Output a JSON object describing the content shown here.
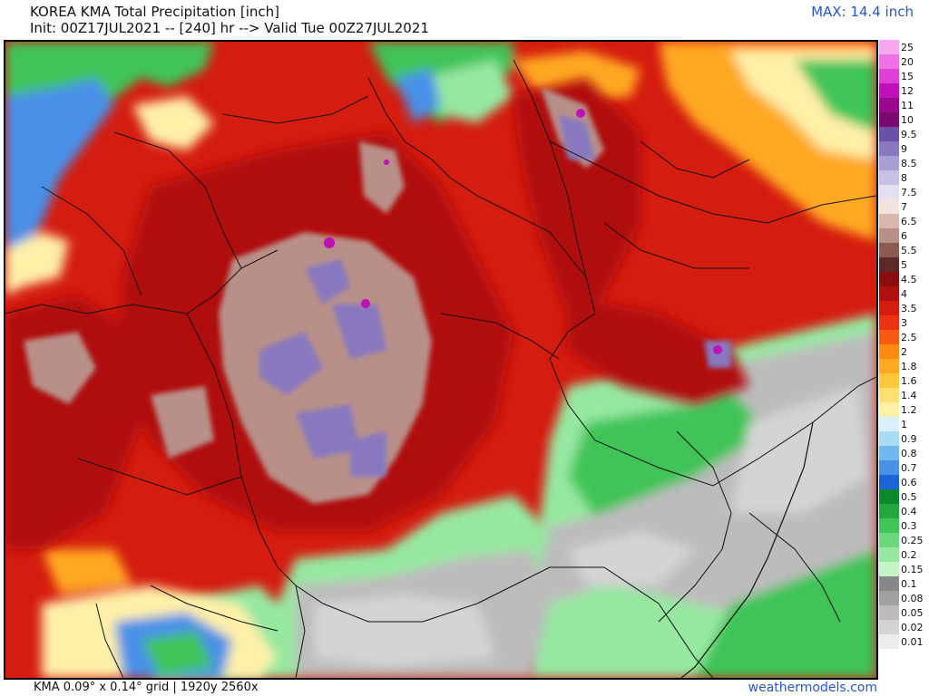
{
  "header": {
    "title": "KOREA KMA Total Precipitation [inch]",
    "init": "Init: 00Z17JUL2021 -- [240] hr --> Valid Tue 00Z27JUL2021",
    "max": "MAX: 14.4 inch"
  },
  "footer": {
    "grid_info": "KMA 0.09° x 0.14° grid | 1920y 2560x",
    "site": "weathermodels.com"
  },
  "legend": [
    {
      "label": "25",
      "color": "#f7a8f0"
    },
    {
      "label": "20",
      "color": "#f070e8"
    },
    {
      "label": "15",
      "color": "#e040d8"
    },
    {
      "label": "12",
      "color": "#c010b8"
    },
    {
      "label": "11",
      "color": "#9a0890"
    },
    {
      "label": "10",
      "color": "#7a0a70"
    },
    {
      "label": "9.5",
      "color": "#6a50a8"
    },
    {
      "label": "9",
      "color": "#8878c0"
    },
    {
      "label": "8.5",
      "color": "#a8a0d4"
    },
    {
      "label": "8",
      "color": "#c8c0e4"
    },
    {
      "label": "7.5",
      "color": "#e4e0f0"
    },
    {
      "label": "7",
      "color": "#f2e4dc"
    },
    {
      "label": "6.5",
      "color": "#d8b8ac"
    },
    {
      "label": "6",
      "color": "#b89088"
    },
    {
      "label": "5.5",
      "color": "#8c5a52"
    },
    {
      "label": "5",
      "color": "#5c2a28"
    },
    {
      "label": "4.5",
      "color": "#8a0e0e"
    },
    {
      "label": "4",
      "color": "#b01010"
    },
    {
      "label": "3.5",
      "color": "#d41c10"
    },
    {
      "label": "3",
      "color": "#ec3210"
    },
    {
      "label": "2.5",
      "color": "#f85a14"
    },
    {
      "label": "2",
      "color": "#ff8a10"
    },
    {
      "label": "1.8",
      "color": "#ffa820"
    },
    {
      "label": "1.6",
      "color": "#ffc83c"
    },
    {
      "label": "1.4",
      "color": "#ffe070"
    },
    {
      "label": "1.2",
      "color": "#fff0a8"
    },
    {
      "label": "1",
      "color": "#d8f0fa"
    },
    {
      "label": "0.9",
      "color": "#a8dcf4"
    },
    {
      "label": "0.8",
      "color": "#70b8f0"
    },
    {
      "label": "0.7",
      "color": "#4890e8"
    },
    {
      "label": "0.6",
      "color": "#1c64d8"
    },
    {
      "label": "0.5",
      "color": "#0a8a2a"
    },
    {
      "label": "0.4",
      "color": "#22a83c"
    },
    {
      "label": "0.3",
      "color": "#40c458"
    },
    {
      "label": "0.25",
      "color": "#6ad87a"
    },
    {
      "label": "0.2",
      "color": "#96e8a0"
    },
    {
      "label": "0.15",
      "color": "#c4f4c4"
    },
    {
      "label": "0.1",
      "color": "#888888"
    },
    {
      "label": "0.08",
      "color": "#a0a0a0"
    },
    {
      "label": "0.05",
      "color": "#bcbcbc"
    },
    {
      "label": "0.02",
      "color": "#d4d4d4"
    },
    {
      "label": "0.01",
      "color": "#ececec"
    }
  ],
  "map": {
    "background_color": "#d41c10",
    "region_colors": {
      "heavy_core": "#b01010",
      "extreme": "#b89088",
      "peak": "#8878c0",
      "max_spot": "#c010b8",
      "moderate": "#ffa820",
      "light": "#fff0a8",
      "blue": "#4890e8",
      "green": "#40c458",
      "light_green": "#96e8a0",
      "gray": "#bcbcbc",
      "light_gray": "#d4d4d4",
      "borders": "#111111"
    }
  }
}
